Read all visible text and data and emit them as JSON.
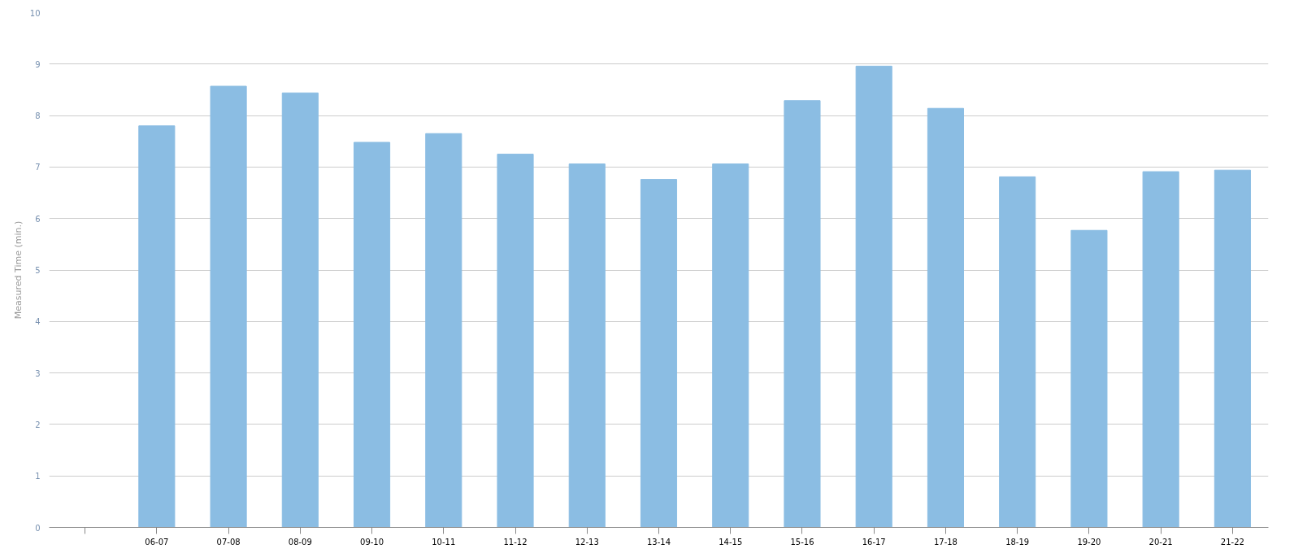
{
  "chart_data": {
    "type": "bar",
    "ylabel": "Measured Time (min.)",
    "categories": [
      null,
      "06-07",
      "07-08",
      "08-09",
      "09-10",
      "10-11",
      "11-12",
      "12-13",
      "13-14",
      "14-15",
      "15-16",
      "16-17",
      "17-18",
      "18-19",
      "19-20",
      "20-21",
      "21-22"
    ],
    "values": [
      null,
      7.8,
      8.57,
      8.44,
      7.48,
      7.65,
      7.25,
      7.06,
      6.76,
      7.06,
      8.29,
      8.96,
      8.14,
      6.81,
      5.77,
      6.91,
      6.94
    ],
    "color": "#8bbde3",
    "ylim": [
      0,
      10
    ],
    "yticks": [
      0,
      1,
      2,
      3,
      4,
      5,
      6,
      7,
      8,
      9,
      10
    ],
    "grid": "y"
  }
}
